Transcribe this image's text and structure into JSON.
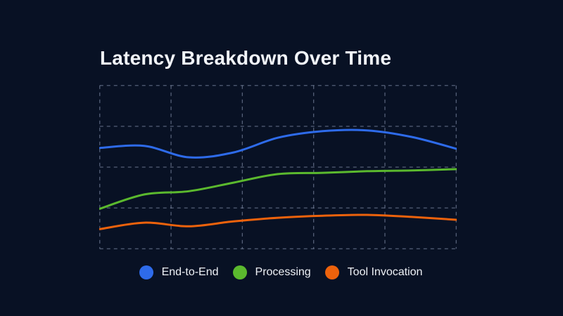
{
  "title": "Latency Breakdown Over Time",
  "colors": {
    "background": "#081124",
    "title_text": "#f1f4f9",
    "legend_text": "#eef1f6",
    "gridline": "rgba(150,162,190,0.55)"
  },
  "chart_data": {
    "type": "line",
    "title": "Latency Breakdown Over Time",
    "x": [
      1,
      2,
      3,
      4,
      5,
      6,
      7,
      8,
      9
    ],
    "x_axis_labels_visible": false,
    "y_axis_labels_visible": false,
    "ylim": [
      0,
      4
    ],
    "y_unit": "gridline units (chart shows no numeric axis labels; values estimated from 4 grid rows)",
    "grid": {
      "columns": 5,
      "rows": 4,
      "style": "dashed",
      "border": true
    },
    "legend_position": "bottom-center",
    "line_width": 3,
    "series": [
      {
        "name": "End-to-End",
        "color": "#2e6bea",
        "values": [
          2.47,
          2.52,
          2.24,
          2.36,
          2.72,
          2.88,
          2.9,
          2.74,
          2.45
        ]
      },
      {
        "name": "Processing",
        "color": "#5bb92e",
        "values": [
          0.98,
          1.33,
          1.41,
          1.62,
          1.83,
          1.86,
          1.9,
          1.92,
          1.95
        ]
      },
      {
        "name": "Tool Invocation",
        "color": "#ed620c",
        "values": [
          0.48,
          0.64,
          0.55,
          0.67,
          0.76,
          0.81,
          0.83,
          0.78,
          0.71
        ]
      }
    ]
  }
}
